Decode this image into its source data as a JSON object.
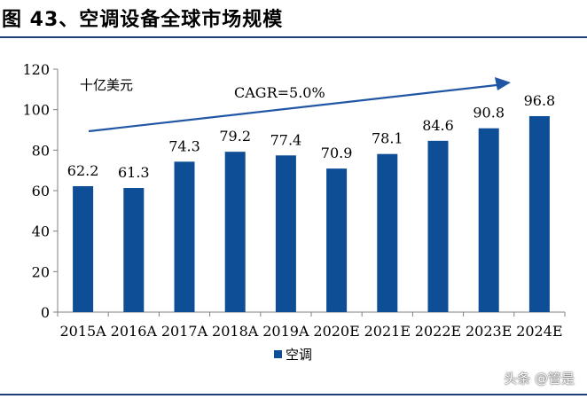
{
  "figure_title": "图 43、空调设备全球市场规模",
  "watermark": "头条 @管是",
  "colors": {
    "bar": "#0e4e96",
    "arrow": "#2156a5",
    "rule": "#1f3f7a",
    "axis": "#808080"
  },
  "chart_data": {
    "type": "bar",
    "categories": [
      "2015A",
      "2016A",
      "2017A",
      "2018A",
      "2019A",
      "2020E",
      "2021E",
      "2022E",
      "2023E",
      "2024E"
    ],
    "series": [
      {
        "name": "空调",
        "values": [
          62.2,
          61.3,
          74.3,
          79.2,
          77.4,
          70.9,
          78.1,
          84.6,
          90.8,
          96.8
        ]
      }
    ],
    "data_labels": [
      "62.2",
      "61.3",
      "74.3",
      "79.2",
      "77.4",
      "70.9",
      "78.1",
      "84.6",
      "90.8",
      "96.8"
    ],
    "unit_label": "十亿美元",
    "annotation": "CAGR=5.0%",
    "ylim": [
      0,
      120
    ],
    "yticks": [
      0,
      20,
      40,
      60,
      80,
      100,
      120
    ],
    "grid": false,
    "legend_position": "bottom-left"
  }
}
